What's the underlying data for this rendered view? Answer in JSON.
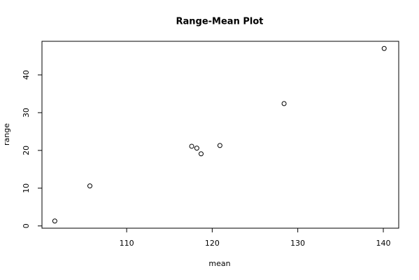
{
  "chart_data": {
    "type": "scatter",
    "title": "Range-Mean Plot",
    "x_label": "mean",
    "y_label": "range",
    "x": [
      101.6,
      105.7,
      117.6,
      118.2,
      118.7,
      120.9,
      128.4,
      140.1
    ],
    "values": [
      1.3,
      10.6,
      21.1,
      20.6,
      19.1,
      21.3,
      32.4,
      47.0
    ],
    "color": "#000000",
    "xlim": [
      100.1,
      141.8
    ],
    "xticks": [
      110,
      120,
      130,
      140
    ],
    "ylim": [
      -0.6,
      48.9
    ],
    "yticks": [
      0,
      10,
      20,
      30,
      40
    ]
  }
}
